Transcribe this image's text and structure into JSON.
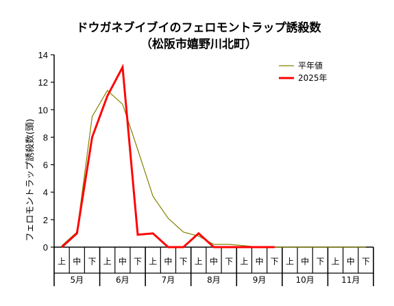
{
  "chart_data": {
    "type": "line",
    "title": "ドウガネブイブイのフェロモントラップ誘殺数",
    "subtitle": "（松阪市嬉野川北町）",
    "ylabel": "フェロモントラップ誘殺数(頭)",
    "xlabel": "",
    "ylim": [
      0,
      14
    ],
    "yticks": [
      0,
      2,
      4,
      6,
      8,
      10,
      12,
      14
    ],
    "grid": false,
    "legend_position": "top-right",
    "categories": [
      "上",
      "中",
      "下",
      "上",
      "中",
      "下",
      "上",
      "中",
      "下",
      "上",
      "中",
      "下",
      "上",
      "中",
      "下",
      "上",
      "中",
      "下",
      "上",
      "中",
      "下"
    ],
    "months": [
      "5月",
      "6月",
      "7月",
      "8月",
      "9月",
      "10月",
      "11月"
    ],
    "series": [
      {
        "name": "平年値",
        "color": "#808000",
        "values": [
          0.1,
          1.1,
          9.5,
          11.4,
          10.4,
          7.1,
          3.7,
          2.1,
          1.1,
          0.8,
          0.2,
          0.2,
          0.1,
          0,
          0,
          0,
          0,
          0,
          0,
          0,
          0
        ]
      },
      {
        "name": "2025年",
        "color": "#ff0000",
        "values": [
          0,
          1,
          8,
          11,
          13.1,
          0.9,
          1,
          0,
          0,
          1,
          0,
          0,
          0,
          0,
          0,
          null,
          null,
          null,
          null,
          null,
          null
        ]
      }
    ]
  }
}
